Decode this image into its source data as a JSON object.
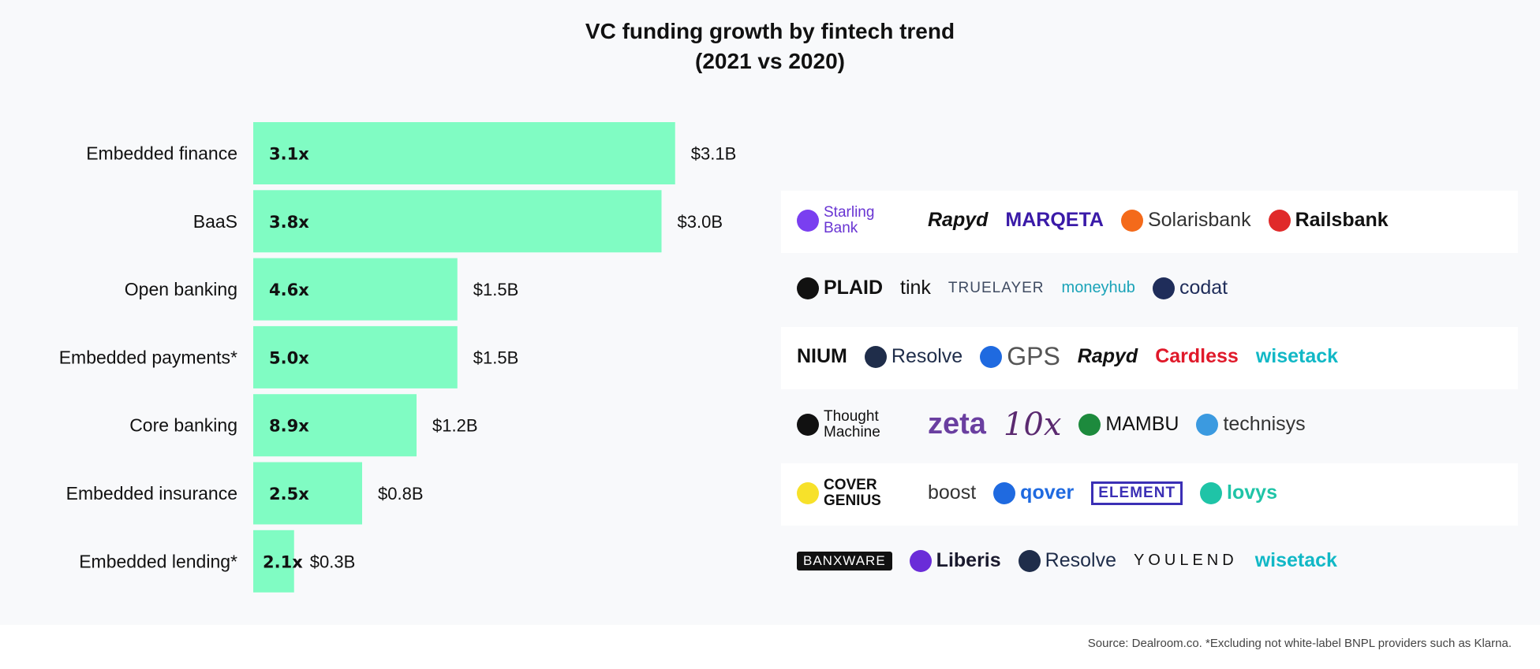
{
  "title_line1": "VC funding growth by fintech trend",
  "title_line2": "(2021 vs 2020)",
  "bar_color": "#80fcc3",
  "chart_data": {
    "type": "bar",
    "orientation": "horizontal",
    "title": "VC funding growth by fintech trend (2021 vs 2020)",
    "categories": [
      "Embedded finance",
      "BaaS",
      "Open banking",
      "Embedded payments*",
      "Core banking",
      "Embedded insurance",
      "Embedded lending*"
    ],
    "values": [
      3.1,
      3.0,
      1.5,
      1.5,
      1.2,
      0.8,
      0.3
    ],
    "value_labels": [
      "$3.1B",
      "$3.0B",
      "$1.5B",
      "$1.5B",
      "$1.2B",
      "$0.8B",
      "$0.3B"
    ],
    "growth_labels": [
      "3.1x",
      "3.8x",
      "4.6x",
      "5.0x",
      "8.9x",
      "2.5x",
      "2.1x"
    ],
    "grid": false,
    "legend": "none"
  },
  "logos": [
    [
      "Starling Bank",
      "Rapyd",
      "MARQETA",
      "Solarisbank",
      "Railsbank"
    ],
    [
      "PLAID",
      "tink",
      "TRUELAYER",
      "moneyhub",
      "codat"
    ],
    [
      "NIUM",
      "Resolve",
      "GPS",
      "Rapyd",
      "Cardless",
      "wisetack"
    ],
    [
      "Thought Machine",
      "zeta",
      "10x",
      "MAMBU",
      "technisys"
    ],
    [
      "COVER GENIUS",
      "boost",
      "qover",
      "ELEMENT",
      "lovys"
    ],
    [
      "BANXWARE",
      "Liberis",
      "Resolve",
      "YOULEND",
      "wisetack"
    ]
  ],
  "logo_colors": {
    "Starling Bank": "#6935d3",
    "Rapyd": "#111111",
    "MARQETA": "#3a1aa8",
    "Solarisbank": "#333333",
    "Railsbank": "#111111",
    "PLAID": "#111111",
    "tink": "#111111",
    "TRUELAYER": "#3f4b62",
    "moneyhub": "#1aa3b8",
    "codat": "#1f2d5a",
    "NIUM": "#111111",
    "Resolve": "#1f2d4a",
    "GPS": "#555555",
    "Cardless": "#e0192a",
    "wisetack": "#11b8c6",
    "Thought Machine": "#111111",
    "zeta": "#6a3fa0",
    "10x": "#5b2a70",
    "MAMBU": "#111111",
    "technisys": "#333333",
    "COVER GENIUS": "#111111",
    "boost": "#333333",
    "qover": "#1f6ae0",
    "ELEMENT": "#3b2fb5",
    "lovys": "#1fc4a7",
    "BANXWARE": "#ffffff",
    "Liberis": "#1a1a2e",
    "YOULEND": "#111111"
  },
  "logo_marks": {
    "Starling Bank": "#7a3ff0",
    "Solarisbank": "#f46a1a",
    "Railsbank": "#e02a2a",
    "PLAID": "#111111",
    "codat": "#1f2d5a",
    "Resolve": "#1f2d4a",
    "GPS": "#1f6ae0",
    "MAMBU": "#1d8a3d",
    "technisys": "#3b9ae0",
    "COVER GENIUS": "#f7e12a",
    "qover": "#1f6ae0",
    "lovys": "#1fc4a7",
    "Liberis": "#6a2cd8",
    "Thought Machine": "#111111"
  },
  "source": "Source: Dealroom.co.  *Excluding not white-label BNPL providers such as Klarna."
}
